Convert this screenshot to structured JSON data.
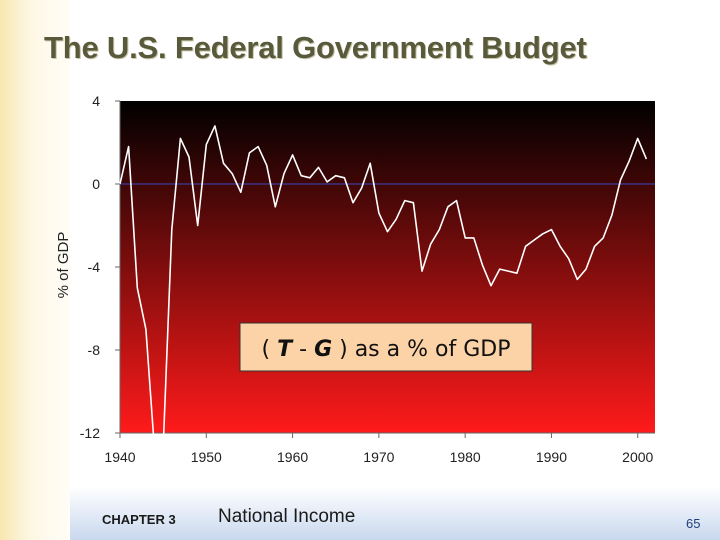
{
  "slide": {
    "title": "The U.S. Federal Government Budget",
    "footer_chapter": "CHAPTER 3",
    "footer_topic": "National Income",
    "page_number": "65"
  },
  "colors": {
    "line": "#ffffff",
    "zero_line": "#3a3aa0",
    "gradient_top": "#000000",
    "gradient_bottom": "#ff1a1a",
    "label_box_fill": "#fcd3a6"
  },
  "chart_data": {
    "type": "line",
    "title": "",
    "xlabel": "",
    "ylabel": "% of GDP",
    "xlim": [
      1940,
      2002
    ],
    "ylim": [
      -12,
      4
    ],
    "x_ticks": [
      1940,
      1950,
      1960,
      1970,
      1980,
      1990,
      2000
    ],
    "x_tick_labels": [
      "1940",
      "1950",
      "1960",
      "1970",
      "1980",
      "1990",
      "2000"
    ],
    "y_ticks": [
      4,
      0,
      -4,
      -8,
      -12
    ],
    "y_tick_labels": [
      "4",
      "0",
      "-4",
      "-8",
      "-12"
    ],
    "reference_line": 0,
    "annotation": {
      "prefix": "(",
      "var1": "T",
      "dash": " - ",
      "var2": "G",
      "suffix": " ) as a % of GDP"
    },
    "series": [
      {
        "name": "(T - G) as a % of GDP",
        "x": [
          1940,
          1941,
          1942,
          1943,
          1944,
          1945,
          1946,
          1947,
          1948,
          1949,
          1950,
          1951,
          1952,
          1953,
          1954,
          1955,
          1956,
          1957,
          1958,
          1959,
          1960,
          1961,
          1962,
          1963,
          1964,
          1965,
          1966,
          1967,
          1968,
          1969,
          1970,
          1971,
          1972,
          1973,
          1974,
          1975,
          1976,
          1977,
          1978,
          1979,
          1980,
          1981,
          1982,
          1983,
          1984,
          1985,
          1986,
          1987,
          1988,
          1989,
          1990,
          1991,
          1992,
          1993,
          1994,
          1995,
          1996,
          1997,
          1998,
          1999,
          2000,
          2001
        ],
        "values": [
          0.0,
          1.8,
          -5.0,
          -7.0,
          -12.8,
          -12.8,
          -2.2,
          2.2,
          1.3,
          -2.0,
          1.9,
          2.8,
          1.0,
          0.5,
          -0.4,
          1.5,
          1.8,
          0.9,
          -1.1,
          0.5,
          1.4,
          0.4,
          0.3,
          0.8,
          0.1,
          0.4,
          0.3,
          -0.9,
          -0.2,
          1.0,
          -1.4,
          -2.3,
          -1.7,
          -0.8,
          -0.9,
          -4.2,
          -2.9,
          -2.2,
          -1.1,
          -0.8,
          -2.6,
          -2.6,
          -3.9,
          -4.9,
          -4.1,
          -4.2,
          -4.3,
          -3.0,
          -2.7,
          -2.4,
          -2.2,
          -3.0,
          -3.6,
          -4.6,
          -4.1,
          -3.0,
          -2.6,
          -1.5,
          0.2,
          1.1,
          2.2,
          1.2
        ]
      }
    ]
  }
}
